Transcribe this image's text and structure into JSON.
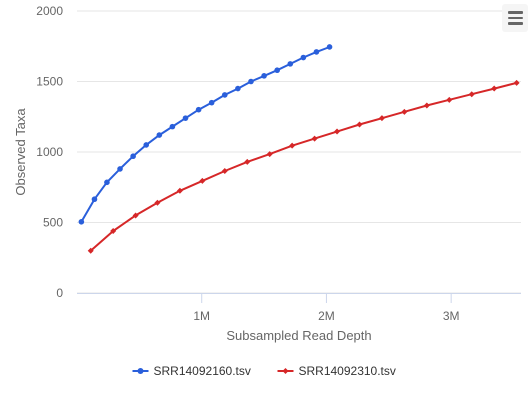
{
  "chart_data": {
    "type": "line",
    "title": "",
    "xlabel": "Subsampled Read Depth",
    "ylabel": "Observed Taxa",
    "xlim": [
      0,
      3560000
    ],
    "ylim": [
      0,
      2000
    ],
    "x_ticks": [
      {
        "value": 1000000,
        "label": "1M"
      },
      {
        "value": 2000000,
        "label": "2M"
      },
      {
        "value": 3000000,
        "label": "3M"
      }
    ],
    "y_ticks": [
      {
        "value": 0,
        "label": "0"
      },
      {
        "value": 500,
        "label": "500"
      },
      {
        "value": 1000,
        "label": "1000"
      },
      {
        "value": 1500,
        "label": "1500"
      },
      {
        "value": 2000,
        "label": "2000"
      }
    ],
    "grid": "horizontal",
    "legend_position": "bottom",
    "series": [
      {
        "name": "SRR14092160.tsv",
        "color": "#2a5fdb",
        "marker": "circle",
        "x": [
          35000,
          140000,
          240000,
          345000,
          450000,
          555000,
          660000,
          765000,
          870000,
          975000,
          1080000,
          1185000,
          1290000,
          1395000,
          1500000,
          1605000,
          1710000,
          1815000,
          1920000,
          2025000
        ],
        "y": [
          505,
          665,
          785,
          880,
          970,
          1050,
          1120,
          1180,
          1240,
          1300,
          1350,
          1405,
          1450,
          1500,
          1540,
          1580,
          1625,
          1670,
          1710,
          1745
        ]
      },
      {
        "name": "SRR14092310.tsv",
        "color": "#d62728",
        "marker": "diamond",
        "x": [
          110000,
          290000,
          470000,
          645000,
          825000,
          1005000,
          1185000,
          1365000,
          1545000,
          1725000,
          1905000,
          2085000,
          2265000,
          2445000,
          2625000,
          2805000,
          2985000,
          3165000,
          3345000,
          3525000
        ],
        "y": [
          300,
          440,
          550,
          640,
          725,
          795,
          865,
          930,
          985,
          1045,
          1095,
          1145,
          1195,
          1240,
          1285,
          1330,
          1370,
          1410,
          1450,
          1490
        ]
      }
    ]
  }
}
